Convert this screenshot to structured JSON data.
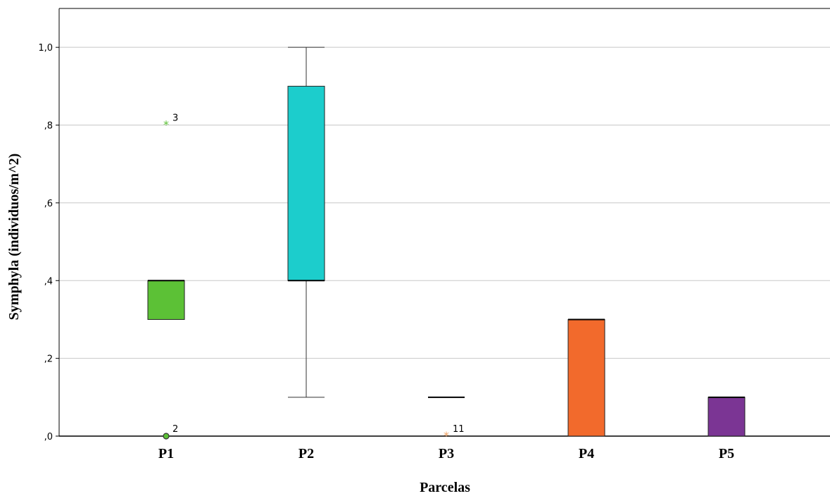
{
  "chart_data": {
    "type": "boxplot",
    "xlabel": "Parcelas",
    "ylabel": "Symphyla (individuos/m^2)",
    "ylim": [
      0,
      1.1
    ],
    "yticks": [
      0,
      0.2,
      0.4,
      0.6,
      0.8,
      1.0
    ],
    "ytick_labels": [
      ",0",
      ",2",
      ",4",
      ",6",
      ",8",
      "1,0"
    ],
    "grid": "horizontal",
    "categories": [
      "P1",
      "P2",
      "P3",
      "P4",
      "P5"
    ],
    "boxes": [
      {
        "category": "P1",
        "color": "#5cc136",
        "min": 0.3,
        "q1": 0.3,
        "median": 0.4,
        "q3": 0.4,
        "max": 0.4,
        "outliers": [
          {
            "value": 0.8,
            "label": "3",
            "marker": "star"
          },
          {
            "value": 0.0,
            "label": "2",
            "marker": "circle"
          }
        ]
      },
      {
        "category": "P2",
        "color": "#1ccdcc",
        "min": 0.1,
        "q1": 0.4,
        "median": 0.4,
        "q3": 0.9,
        "max": 1.0,
        "outliers": []
      },
      {
        "category": "P3",
        "color": "#f0a060",
        "min": 0.1,
        "q1": 0.1,
        "median": 0.1,
        "q3": 0.1,
        "max": 0.1,
        "outliers": [
          {
            "value": 0.0,
            "label": "11",
            "marker": "star"
          }
        ]
      },
      {
        "category": "P4",
        "color": "#f26a2c",
        "min": 0.0,
        "q1": 0.0,
        "median": 0.3,
        "q3": 0.3,
        "max": 0.3,
        "outliers": []
      },
      {
        "category": "P5",
        "color": "#7b3594",
        "min": 0.0,
        "q1": 0.0,
        "median": 0.1,
        "q3": 0.1,
        "max": 0.1,
        "outliers": []
      }
    ]
  }
}
